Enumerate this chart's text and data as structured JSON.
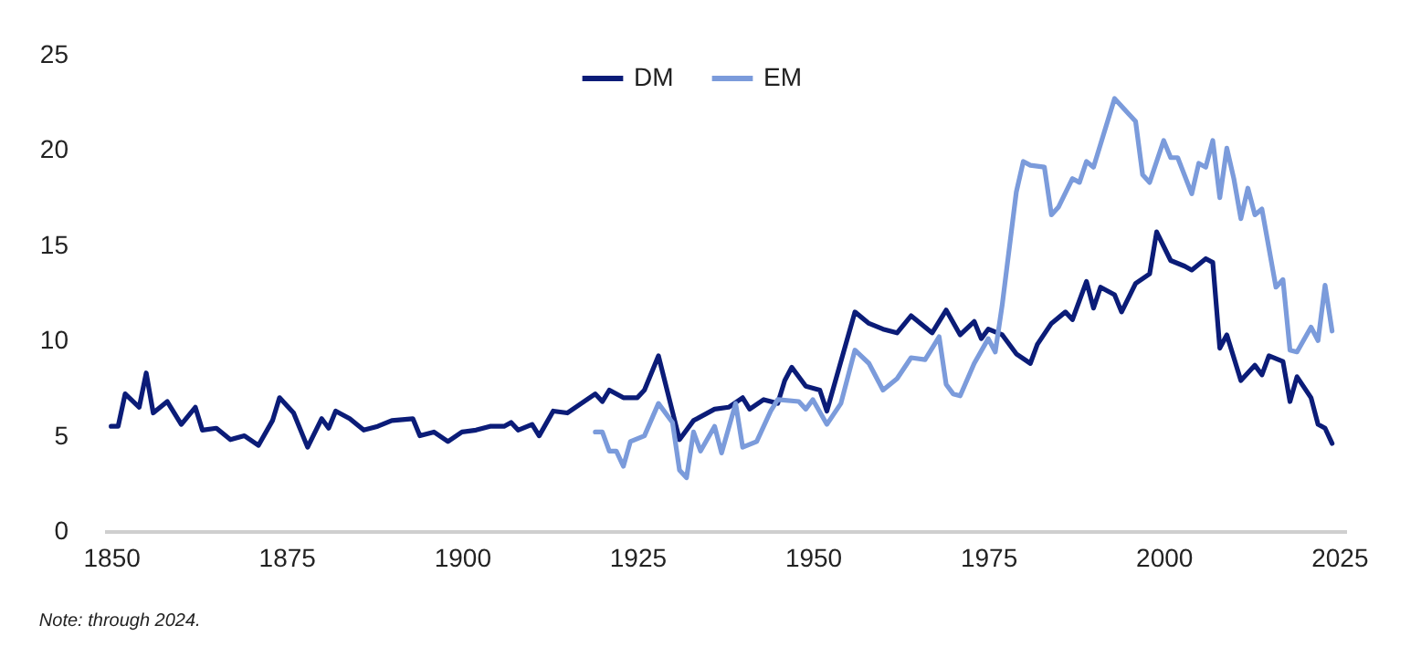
{
  "chart_data": {
    "type": "line",
    "annotations": [
      "Note: through 2024."
    ],
    "xlim": [
      1849,
      2026
    ],
    "xticks": [
      1850,
      1875,
      1900,
      1925,
      1950,
      1975,
      2000,
      2025
    ],
    "ylim": [
      0,
      25
    ],
    "yticks": [
      0,
      5,
      10,
      15,
      20,
      25
    ],
    "grid": false,
    "legend": "top",
    "series": [
      {
        "name": "DM",
        "color": "#0b1c78",
        "x": [
          1850,
          1851,
          1852,
          1854,
          1855,
          1856,
          1858,
          1860,
          1862,
          1863,
          1865,
          1867,
          1869,
          1871,
          1873,
          1874,
          1876,
          1878,
          1880,
          1881,
          1882,
          1884,
          1886,
          1888,
          1890,
          1893,
          1894,
          1896,
          1898,
          1900,
          1902,
          1904,
          1906,
          1907,
          1908,
          1910,
          1911,
          1913,
          1915,
          1917,
          1919,
          1920,
          1921,
          1923,
          1925,
          1926,
          1928,
          1931,
          1933,
          1936,
          1938,
          1940,
          1941,
          1943,
          1945,
          1946,
          1947,
          1949,
          1951,
          1952,
          1956,
          1958,
          1960,
          1962,
          1964,
          1967,
          1969,
          1971,
          1973,
          1974,
          1975,
          1977,
          1979,
          1981,
          1982,
          1984,
          1986,
          1987,
          1989,
          1990,
          1991,
          1993,
          1994,
          1996,
          1998,
          1999,
          2001,
          2003,
          2004,
          2006,
          2007,
          2008,
          2009,
          2011,
          2013,
          2014,
          2015,
          2017,
          2018,
          2019,
          2021,
          2022,
          2023,
          2024
        ],
        "values": [
          5.5,
          5.5,
          7.2,
          6.5,
          8.3,
          6.2,
          6.8,
          5.6,
          6.5,
          5.3,
          5.4,
          4.8,
          5.0,
          4.5,
          5.8,
          7.0,
          6.2,
          4.4,
          5.9,
          5.4,
          6.3,
          5.9,
          5.3,
          5.5,
          5.8,
          5.9,
          5.0,
          5.2,
          4.7,
          5.2,
          5.3,
          5.5,
          5.5,
          5.7,
          5.3,
          5.6,
          5.0,
          6.3,
          6.2,
          6.7,
          7.2,
          6.8,
          7.4,
          7.0,
          7.0,
          7.4,
          9.2,
          4.8,
          5.8,
          6.4,
          6.5,
          7.0,
          6.4,
          6.9,
          6.7,
          7.9,
          8.6,
          7.6,
          7.4,
          6.3,
          11.5,
          10.9,
          10.6,
          10.4,
          11.3,
          10.4,
          11.6,
          10.3,
          11.0,
          10.1,
          10.6,
          10.3,
          9.3,
          8.8,
          9.8,
          10.9,
          11.5,
          11.1,
          13.1,
          11.7,
          12.8,
          12.4,
          11.5,
          13.0,
          13.5,
          15.7,
          14.2,
          13.9,
          13.7,
          14.3,
          14.1,
          9.6,
          10.3,
          7.9,
          8.7,
          8.2,
          9.2,
          8.9,
          6.8,
          8.1,
          7.0,
          5.6,
          5.4,
          4.6
        ]
      },
      {
        "name": "EM",
        "color": "#7b9bdb",
        "x": [
          1919,
          1920,
          1921,
          1922,
          1923,
          1924,
          1926,
          1928,
          1930,
          1931,
          1932,
          1933,
          1934,
          1936,
          1937,
          1939,
          1940,
          1942,
          1944,
          1945,
          1948,
          1949,
          1950,
          1952,
          1954,
          1956,
          1958,
          1960,
          1962,
          1964,
          1966,
          1968,
          1969,
          1970,
          1971,
          1973,
          1975,
          1976,
          1977,
          1979,
          1980,
          1981,
          1983,
          1984,
          1985,
          1987,
          1988,
          1989,
          1990,
          1993,
          1995,
          1996,
          1997,
          1998,
          2000,
          2001,
          2002,
          2004,
          2005,
          2006,
          2007,
          2008,
          2009,
          2010,
          2011,
          2012,
          2013,
          2014,
          2016,
          2017,
          2018,
          2019,
          2021,
          2022,
          2023,
          2024
        ],
        "values": [
          5.2,
          5.2,
          4.2,
          4.2,
          3.4,
          4.7,
          5.0,
          6.7,
          5.7,
          3.2,
          2.8,
          5.2,
          4.2,
          5.5,
          4.1,
          6.7,
          4.4,
          4.7,
          6.3,
          6.9,
          6.8,
          6.4,
          6.9,
          5.6,
          6.7,
          9.5,
          8.8,
          7.4,
          8.0,
          9.1,
          9.0,
          10.2,
          7.7,
          7.2,
          7.1,
          8.8,
          10.1,
          9.4,
          11.9,
          17.8,
          19.4,
          19.2,
          19.1,
          16.6,
          17.0,
          18.5,
          18.3,
          19.4,
          19.1,
          22.7,
          21.9,
          21.5,
          18.7,
          18.3,
          20.5,
          19.6,
          19.6,
          17.7,
          19.3,
          19.1,
          20.5,
          17.5,
          20.1,
          18.5,
          16.4,
          18.0,
          16.6,
          16.9,
          12.8,
          13.2,
          9.5,
          9.4,
          10.7,
          10.0,
          12.9,
          10.5
        ]
      }
    ]
  }
}
